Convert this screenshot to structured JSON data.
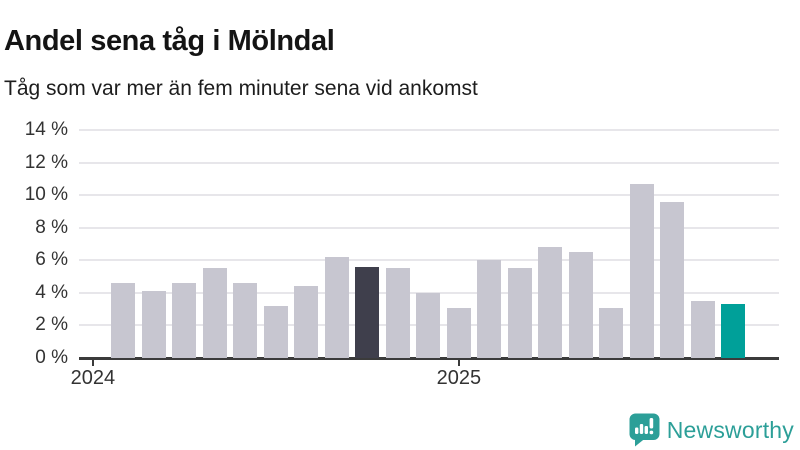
{
  "header": {
    "title": "Andel sena tåg i Mölndal",
    "subtitle": "Tåg som var mer än fem minuter sena vid ankomst"
  },
  "chart_data": {
    "type": "bar",
    "title": "Andel sena tåg i Mölndal",
    "subtitle": "Tåg som var mer än fem minuter sena vid ankomst",
    "values": [
      4.6,
      4.1,
      4.6,
      5.5,
      4.6,
      3.2,
      4.4,
      6.2,
      5.6,
      5.5,
      4.0,
      3.1,
      6.0,
      5.5,
      6.8,
      6.5,
      3.1,
      10.7,
      9.6,
      3.5,
      3.3
    ],
    "highlight_dark_index": 8,
    "highlight_accent_index": 20,
    "unit": "%",
    "ylim": [
      0,
      14
    ],
    "y_ticks": [
      "0 %",
      "2 %",
      "4 %",
      "6 %",
      "8 %",
      "10 %",
      "12 %",
      "14 %"
    ],
    "x_ticks": [
      {
        "label": "2024",
        "month_offset": -1
      },
      {
        "label": "2025",
        "month_offset": 11
      }
    ],
    "grid": true,
    "legend": "none",
    "colors": {
      "bar": "#c7c6d0",
      "dark": "#3f3f4c",
      "accent": "#00a099",
      "grid": "#e7e6ea",
      "axis": "#3b3b3b",
      "tick_text": "#333333"
    }
  },
  "footer": {
    "brand": "Newsworthy",
    "logo_icon": "bar-chart-speech-bubble-icon",
    "brand_color": "#2c9f98"
  }
}
